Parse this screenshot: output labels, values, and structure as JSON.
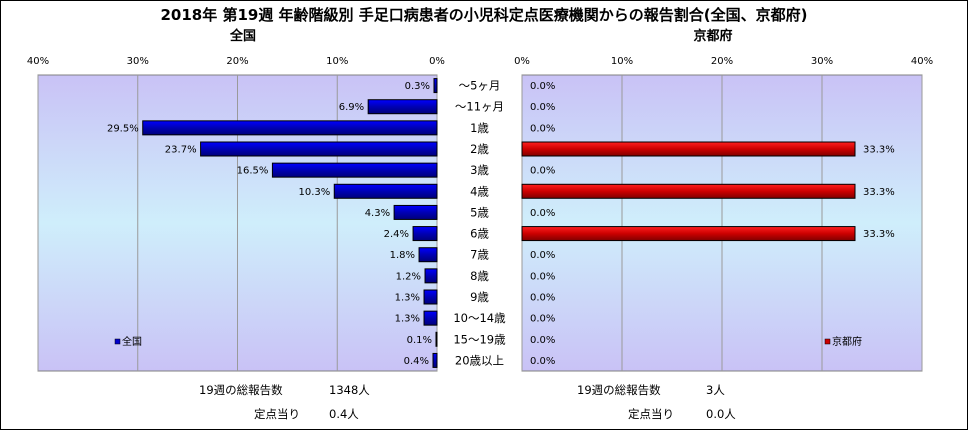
{
  "chart_data": {
    "type": "bar",
    "title": "2018年 第19週 年齢階級別 手足口病患者の小児科定点医療機関からの報告割合(全国、京都府)",
    "categories": [
      "〜5ヶ月",
      "〜11ヶ月",
      "1歳",
      "2歳",
      "3歳",
      "4歳",
      "5歳",
      "6歳",
      "7歳",
      "8歳",
      "9歳",
      "10〜14歳",
      "15〜19歳",
      "20歳以上"
    ],
    "axis_ticks": [
      "40%",
      "30%",
      "20%",
      "10%",
      "0%"
    ],
    "axis_ticks_right": [
      "0%",
      "10%",
      "20%",
      "30%",
      "40%"
    ],
    "xlim": [
      0,
      40
    ],
    "series": [
      {
        "name": "全国",
        "panel_title": "全国",
        "color": "#0000CC",
        "values": [
          0.3,
          6.9,
          29.5,
          23.7,
          16.5,
          10.3,
          4.3,
          2.4,
          1.8,
          1.2,
          1.3,
          1.3,
          0.1,
          0.4
        ],
        "value_labels": [
          "0.3%",
          "6.9%",
          "29.5%",
          "23.7%",
          "16.5%",
          "10.3%",
          "4.3%",
          "2.4%",
          "1.8%",
          "1.2%",
          "1.3%",
          "1.3%",
          "0.1%",
          "0.4%"
        ]
      },
      {
        "name": "京都府",
        "panel_title": "京都府",
        "color": "#CC0000",
        "values": [
          0.0,
          0.0,
          0.0,
          33.3,
          0.0,
          33.3,
          0.0,
          33.3,
          0.0,
          0.0,
          0.0,
          0.0,
          0.0,
          0.0
        ],
        "value_labels": [
          "0.0%",
          "0.0%",
          "0.0%",
          "33.3%",
          "0.0%",
          "33.3%",
          "0.0%",
          "33.3%",
          "0.0%",
          "0.0%",
          "0.0%",
          "0.0%",
          "0.0%",
          "0.0%"
        ]
      }
    ],
    "legend": "inside-bottom of each panel",
    "grid": true,
    "footer": {
      "national_total_label": "19週の総報告数",
      "national_total_value": "1348人",
      "national_per_label": "定点当り",
      "national_per_value": "0.4人",
      "kyoto_total_label": "19週の総報告数",
      "kyoto_total_value": "3人",
      "kyoto_per_label": "定点当り",
      "kyoto_per_value": "0.0人"
    }
  }
}
